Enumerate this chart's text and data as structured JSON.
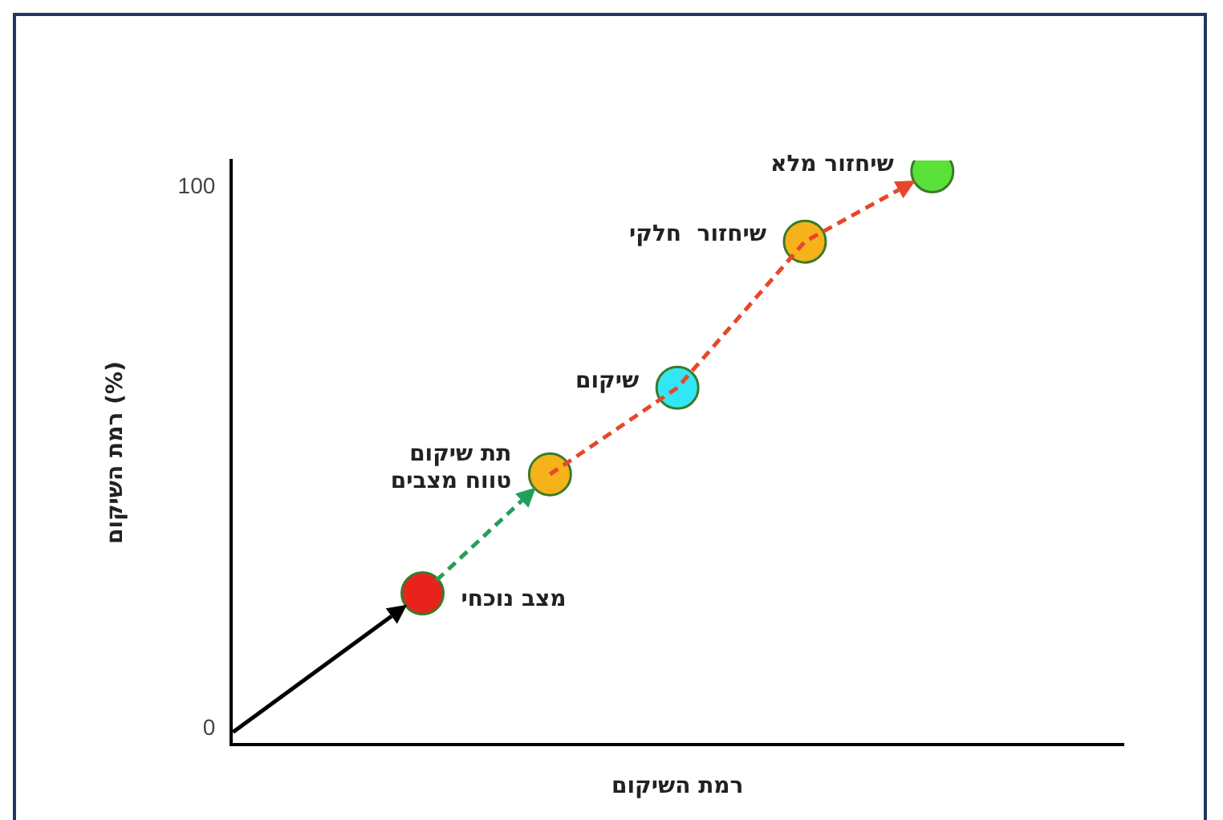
{
  "chart_data": {
    "type": "scatter",
    "xlabel": "רמת השיקום",
    "ylabel": "רמת השיקום (%)",
    "categories": [
      null,
      null,
      null,
      null,
      null,
      null,
      null
    ],
    "ylim": [
      -3,
      105
    ],
    "yticks": [
      0,
      100
    ],
    "grid": false,
    "legend": false,
    "tick_labels": "y",
    "marker": "circle",
    "series": [
      {
        "colors": [
          null,
          "#e8231e",
          "#f5b21a",
          "#33e6f5",
          "#f5b21a",
          "#5ae23a",
          null
        ],
        "values": [
          null,
          25,
          47,
          63,
          90,
          103,
          null
        ],
        "value_labels": [
          null,
          "מצב נוכחי",
          "תת שיקום\nטווח מצבים",
          "שיקום",
          "שיחזור  חלקי",
          "שיחזור מלא",
          null
        ]
      }
    ]
  }
}
